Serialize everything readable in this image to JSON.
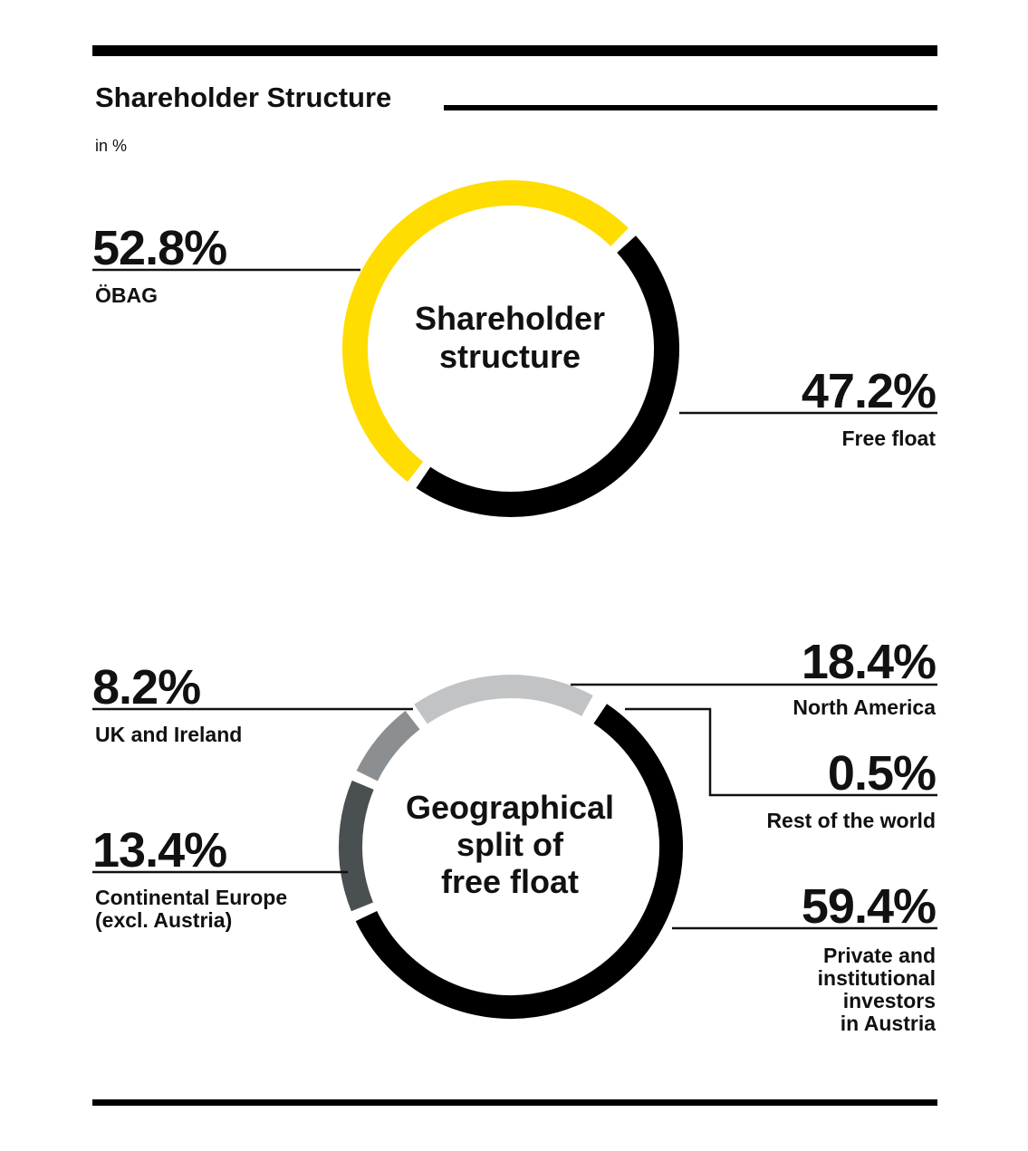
{
  "title": "Shareholder Structure",
  "subtitle": "in %",
  "chart_data": [
    {
      "type": "pie",
      "title": "Shareholder structure",
      "center_lines": [
        "Shareholder",
        "structure"
      ],
      "slices": [
        {
          "label": "ÖBAG",
          "value": 52.8,
          "display": "52.8%",
          "color": "#ffdd00"
        },
        {
          "label": "Free float",
          "value": 47.2,
          "display": "47.2%",
          "color": "#000000"
        }
      ]
    },
    {
      "type": "pie",
      "title": "Geographical split of free float",
      "center_lines": [
        "Geographical",
        "split of",
        "free float"
      ],
      "slices": [
        {
          "label": "North America",
          "value": 18.4,
          "display": "18.4%",
          "color": "#c1c3c4"
        },
        {
          "label": "Rest of the world",
          "value": 0.5,
          "display": "0.5%",
          "color": "#ffffff"
        },
        {
          "label": "Private and institutional investors in Austria",
          "label_lines": [
            "Private and",
            "institutional",
            "investors",
            "in Austria"
          ],
          "value": 59.4,
          "display": "59.4%",
          "color": "#000000"
        },
        {
          "label": "Continental Europe (excl. Austria)",
          "label_lines": [
            "Continental Europe",
            "(excl. Austria)"
          ],
          "value": 13.4,
          "display": "13.4%",
          "color": "#4a4f51"
        },
        {
          "label": "UK and Ireland",
          "value": 8.2,
          "display": "8.2%",
          "color": "#8c8f91"
        }
      ]
    }
  ]
}
